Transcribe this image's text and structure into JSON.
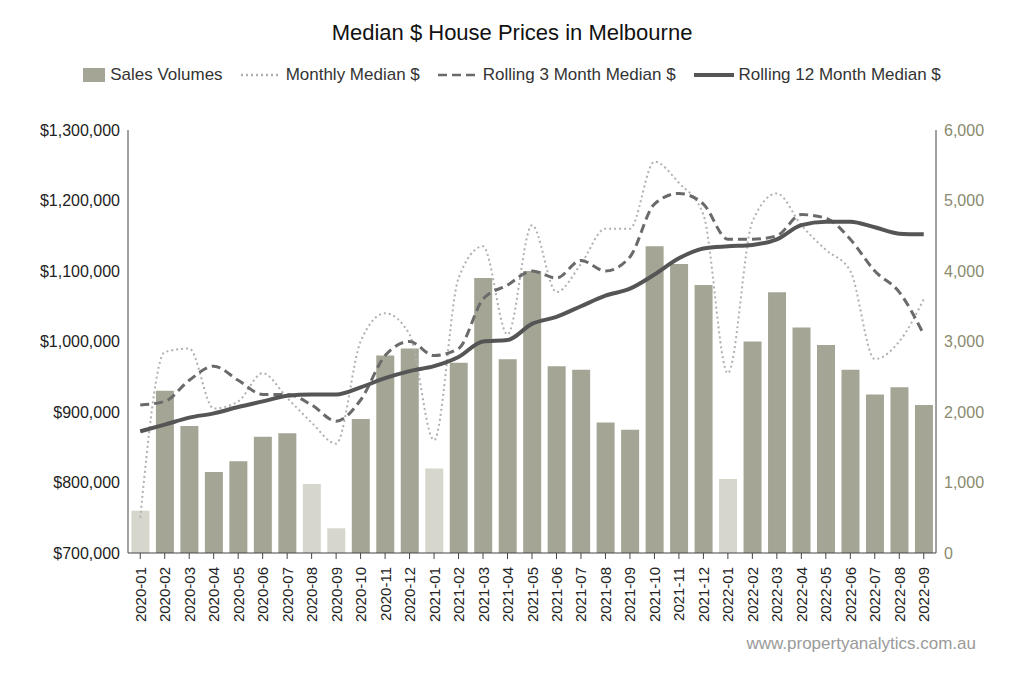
{
  "chart_data": {
    "type": "bar",
    "title": "Median $ House Prices in Melbourne",
    "annotation": "www.propertyanalytics.com.au",
    "categories": [
      "2020-01",
      "2020-02",
      "2020-03",
      "2020-04",
      "2020-05",
      "2020-06",
      "2020-07",
      "2020-08",
      "2020-09",
      "2020-10",
      "2020-11",
      "2020-12",
      "2021-01",
      "2021-02",
      "2021-03",
      "2021-04",
      "2021-05",
      "2021-06",
      "2021-07",
      "2021-08",
      "2021-09",
      "2021-10",
      "2021-11",
      "2021-12",
      "2022-01",
      "2022-02",
      "2022-03",
      "2022-04",
      "2022-05",
      "2022-06",
      "2022-07",
      "2022-08",
      "2022-09"
    ],
    "series": [
      {
        "name": "Sales Volumes",
        "type": "bar",
        "axis": "y2",
        "color": "#a5a596",
        "colors": [
          "#d6d6cc",
          "#a5a596",
          "#a5a596",
          "#a5a596",
          "#a5a596",
          "#a5a596",
          "#a5a596",
          "#d6d6cc",
          "#d6d6cc",
          "#a5a596",
          "#a5a596",
          "#a5a596",
          "#d6d6cc",
          "#a5a596",
          "#a5a596",
          "#a5a596",
          "#a5a596",
          "#a5a596",
          "#a5a596",
          "#a5a596",
          "#a5a596",
          "#a5a596",
          "#a5a596",
          "#a5a596",
          "#d6d6cc",
          "#a5a596",
          "#a5a596",
          "#a5a596",
          "#a5a596",
          "#a5a596",
          "#a5a596",
          "#a5a596",
          "#a5a596"
        ],
        "values": [
          600,
          2300,
          1800,
          1150,
          1300,
          1650,
          1700,
          980,
          350,
          1900,
          2800,
          2900,
          1200,
          2700,
          3900,
          2750,
          4000,
          2650,
          2600,
          1850,
          1750,
          4350,
          4100,
          3800,
          1050,
          3000,
          3700,
          3200,
          2950,
          2600,
          2250,
          2350,
          2100
        ]
      },
      {
        "name": "Monthly Median $",
        "type": "line",
        "line_style": "dotted",
        "color": "#b0b0b0",
        "values": [
          750000,
          985000,
          990000,
          905000,
          915000,
          955000,
          920000,
          885000,
          855000,
          1000000,
          1040000,
          1010000,
          860000,
          1090000,
          1135000,
          1010000,
          1165000,
          1070000,
          1110000,
          1160000,
          1160000,
          1255000,
          1225000,
          1180000,
          955000,
          1170000,
          1210000,
          1165000,
          1130000,
          1100000,
          975000,
          1000000,
          1060000
        ]
      },
      {
        "name": "Rolling 3 Month Median $",
        "type": "line",
        "line_style": "dashed",
        "color": "#6a6a6a",
        "values": [
          910000,
          915000,
          945000,
          965000,
          945000,
          925000,
          925000,
          910000,
          887000,
          917000,
          980000,
          1000000,
          980000,
          990000,
          1060000,
          1080000,
          1100000,
          1090000,
          1115000,
          1100000,
          1120000,
          1195000,
          1210000,
          1195000,
          1145000,
          1145000,
          1150000,
          1180000,
          1175000,
          1145000,
          1100000,
          1070000,
          1010000
        ]
      },
      {
        "name": "Rolling 12 Month Median $",
        "type": "line",
        "line_style": "solid",
        "color": "#555555",
        "values": [
          872500,
          882000,
          892000,
          898000,
          907000,
          915000,
          923000,
          925000,
          925000,
          935000,
          948000,
          958000,
          965000,
          978000,
          1000000,
          1002000,
          1025000,
          1035000,
          1050000,
          1065000,
          1075000,
          1095000,
          1118000,
          1132000,
          1135000,
          1137000,
          1145000,
          1165000,
          1170000,
          1170000,
          1162000,
          1153000,
          1152000
        ]
      }
    ],
    "ylim": [
      700000,
      1300000
    ],
    "yticks": [
      {
        "value": 700000,
        "label": "$700,000"
      },
      {
        "value": 800000,
        "label": "$800,000"
      },
      {
        "value": 900000,
        "label": "$900,000"
      },
      {
        "value": 1000000,
        "label": "$1,000,000"
      },
      {
        "value": 1100000,
        "label": "$1,100,000"
      },
      {
        "value": 1200000,
        "label": "$1,200,000"
      },
      {
        "value": 1300000,
        "label": "$1,300,000"
      }
    ],
    "y2lim": [
      0,
      6000
    ],
    "y2ticks": [
      0,
      {
        "value": 1000,
        "label": "1,000"
      },
      {
        "value": 2000,
        "label": "2,000"
      },
      {
        "value": 3000,
        "label": "3,000"
      },
      {
        "value": 4000,
        "label": "4,000"
      },
      {
        "value": 5000,
        "label": "5,000"
      },
      {
        "value": 6000,
        "label": "6,000"
      }
    ],
    "grid": false,
    "legend": "top"
  }
}
